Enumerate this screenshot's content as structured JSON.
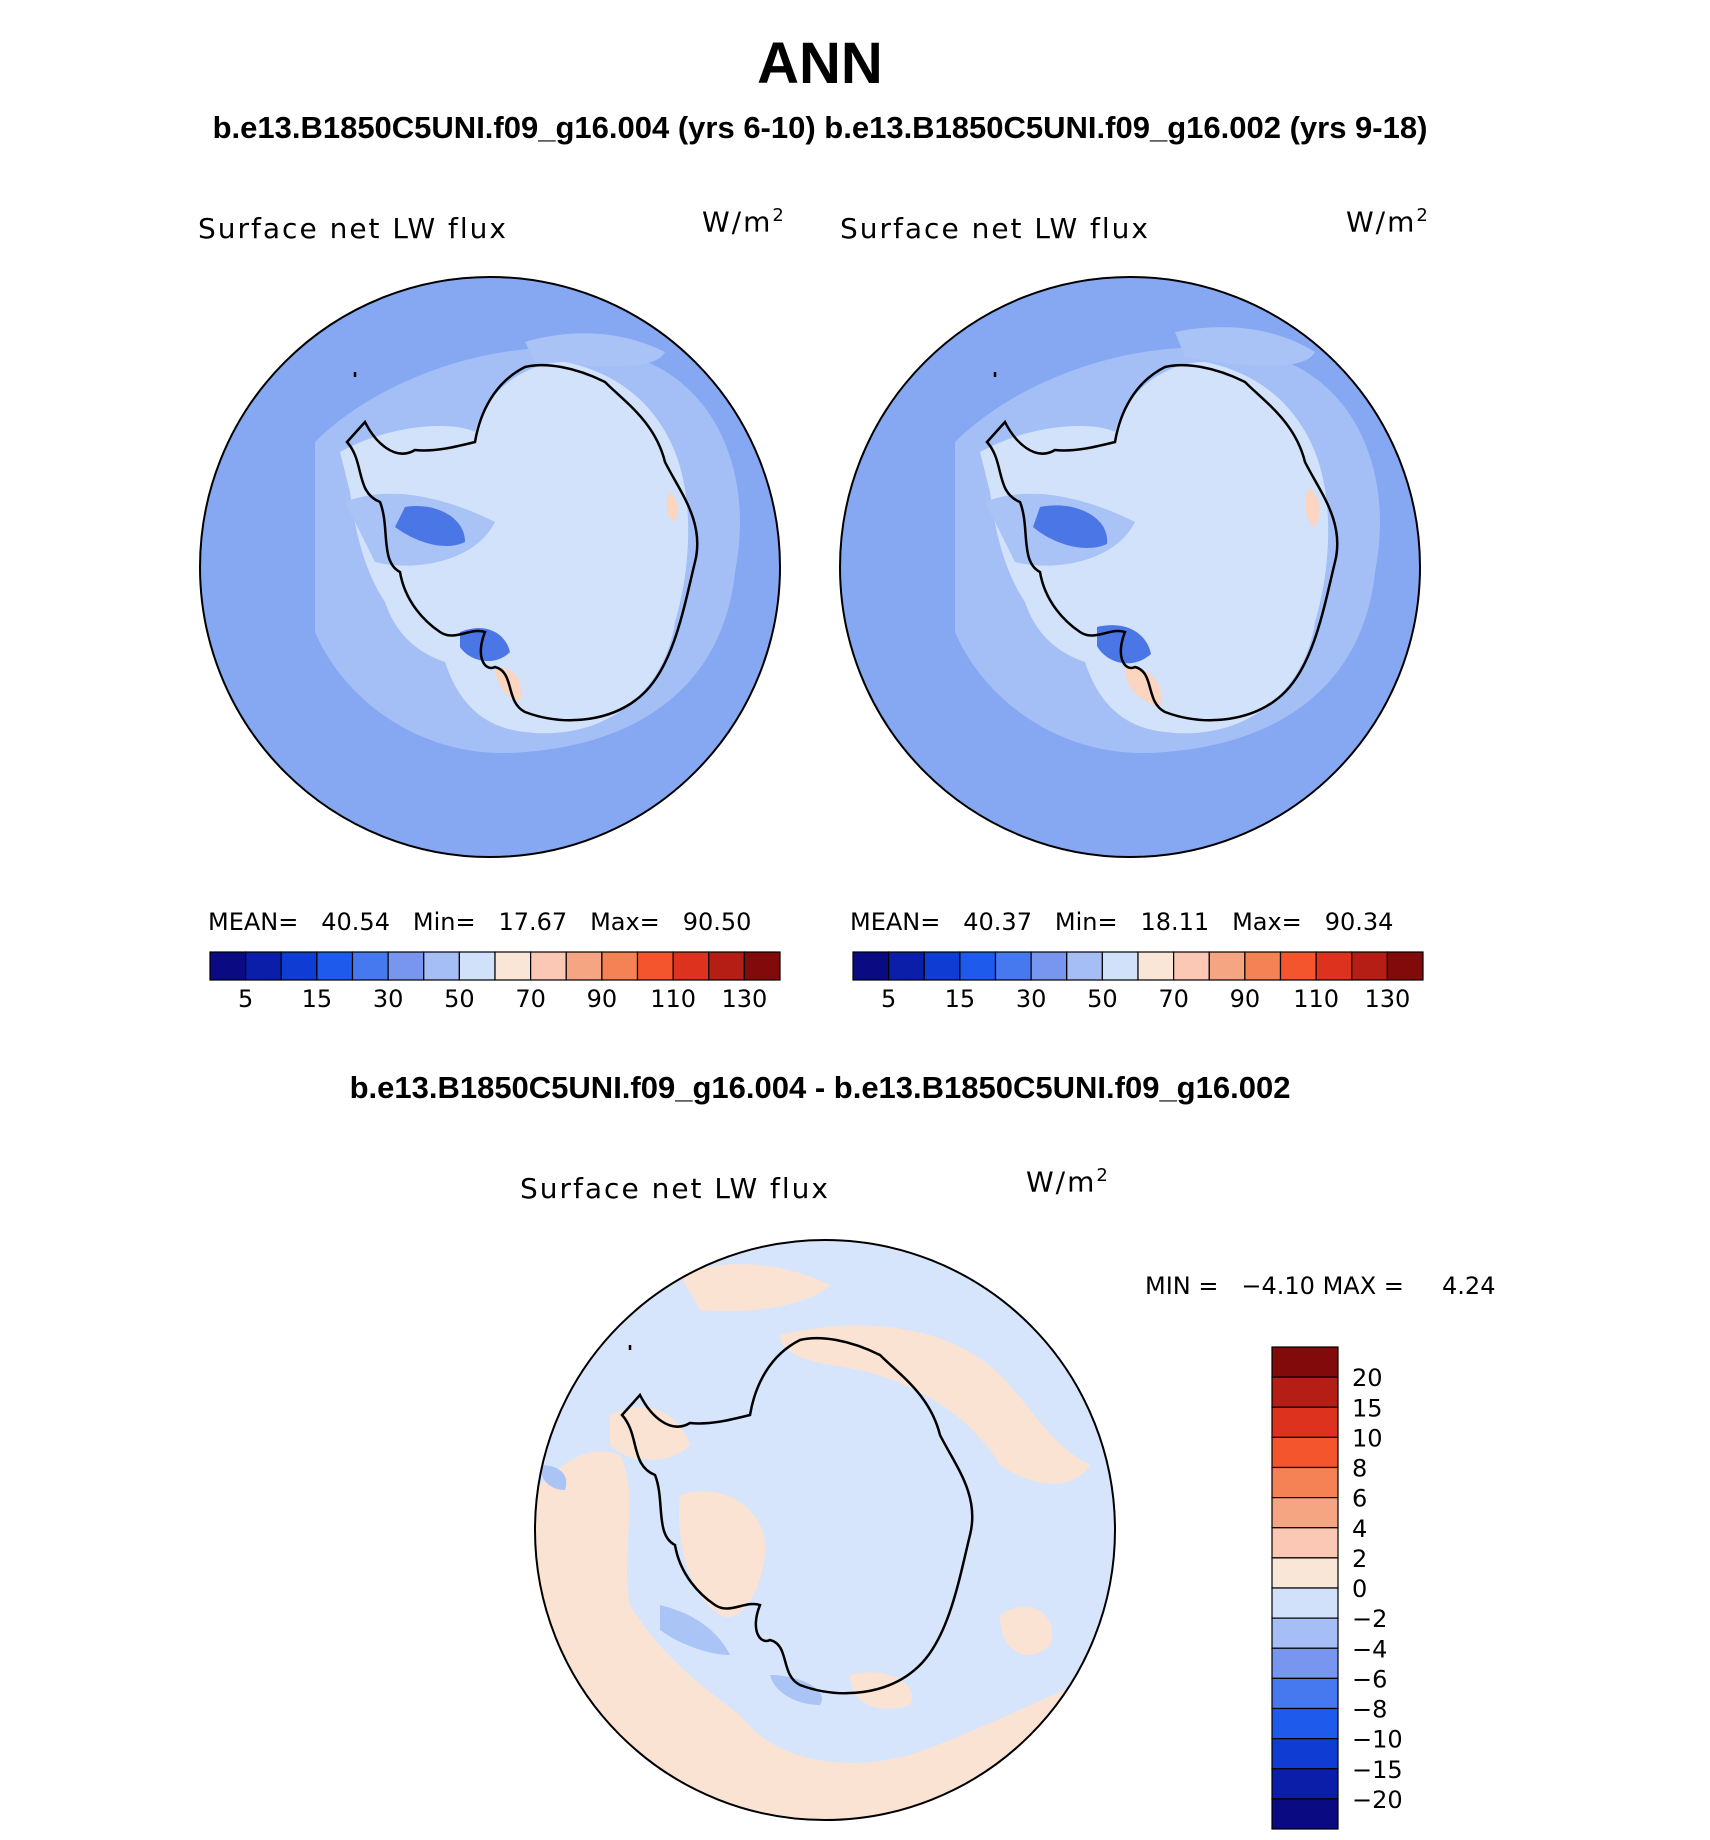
{
  "title": "ANN",
  "subtitle": "b.e13.B1850C5UNI.f09_g16.004 (yrs 6-10) b.e13.B1850C5UNI.f09_g16.002 (yrs 9-18)",
  "diff_title": "b.e13.B1850C5UNI.f09_g16.004 - b.e13.B1850C5UNI.f09_g16.002",
  "panels": [
    {
      "variable": "Surface net LW flux",
      "units": "W/m",
      "units_exp": "2",
      "stats": {
        "mean_label": "MEAN=",
        "mean": "40.54",
        "min_label": "Min=",
        "min": "17.67",
        "max_label": "Max=",
        "max": "90.50"
      }
    },
    {
      "variable": "Surface net LW flux",
      "units": "W/m",
      "units_exp": "2",
      "stats": {
        "mean_label": "MEAN=",
        "mean": "40.37",
        "min_label": "Min=",
        "min": "18.11",
        "max_label": "Max=",
        "max": "90.34"
      }
    },
    {
      "variable": "Surface net LW flux",
      "units": "W/m",
      "units_exp": "2",
      "stats": {
        "min_label": "MIN =",
        "min": "−4.10",
        "max_label": "MAX =",
        "max": "4.24"
      }
    }
  ],
  "colorbar_abs": {
    "tick_labels": [
      "5",
      "15",
      "30",
      "50",
      "70",
      "90",
      "110",
      "130"
    ],
    "colors": [
      "#0a0a82",
      "#0a1eaa",
      "#0f3cd2",
      "#1e5aeb",
      "#4678f0",
      "#7896f0",
      "#a5bef5",
      "#d2e1fa",
      "#fae6d7",
      "#fac8b4",
      "#f5a582",
      "#f58255",
      "#f5552d",
      "#dc321e",
      "#b41e14",
      "#820a0a"
    ]
  },
  "colorbar_diff": {
    "tick_labels": [
      "20",
      "15",
      "10",
      "8",
      "6",
      "4",
      "2",
      "0",
      "−2",
      "−4",
      "−6",
      "−8",
      "−10",
      "−15",
      "−20"
    ],
    "colors": [
      "#820a0a",
      "#b41e14",
      "#dc321e",
      "#f5552d",
      "#f58255",
      "#f5a582",
      "#fac8b4",
      "#fae6d7",
      "#d2e1fa",
      "#a5bef5",
      "#7896f0",
      "#4678f0",
      "#1e5aeb",
      "#0f3cd2",
      "#0a1eaa",
      "#0a0a82"
    ]
  },
  "map_colors": {
    "ocean": "#86a8f3",
    "shelf": "#a9c3f6",
    "interior": "#d3e2fb",
    "deep": "#4b77e6",
    "warm": "#fbd5c0",
    "diff_pos": "#fbe3d3",
    "diff_neg": "#d6e5fb",
    "diff_neg2": "#aac4f5"
  }
}
